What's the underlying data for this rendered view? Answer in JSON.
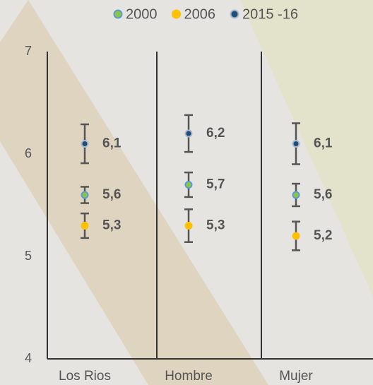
{
  "chart_data": {
    "type": "dot-errorbar",
    "categories": [
      "Los Rios",
      "Hombre",
      "Mujer"
    ],
    "series": [
      {
        "name": "2000",
        "color": "#8cc63f",
        "edge": "#5b9bd5",
        "values": [
          5.6,
          5.7,
          5.6
        ],
        "value_labels": [
          "5,6",
          "5,7",
          "5,6"
        ],
        "errors": [
          0.08,
          0.12,
          0.11
        ]
      },
      {
        "name": "2006",
        "color": "#ffc000",
        "edge": "#ffc000",
        "values": [
          5.3,
          5.3,
          5.2
        ],
        "value_labels": [
          "5,3",
          "5,3",
          "5,2"
        ],
        "errors": [
          0.12,
          0.16,
          0.14
        ]
      },
      {
        "name": "2015 -16",
        "color": "#1f4e79",
        "edge": "#a9b8cc",
        "values": [
          6.1,
          6.2,
          6.1
        ],
        "value_labels": [
          "6,1",
          "6,2",
          "6,1"
        ],
        "errors": [
          0.19,
          0.18,
          0.2
        ]
      }
    ],
    "ylim": [
      4,
      7
    ],
    "yticks": [
      4,
      5,
      6,
      7
    ]
  }
}
